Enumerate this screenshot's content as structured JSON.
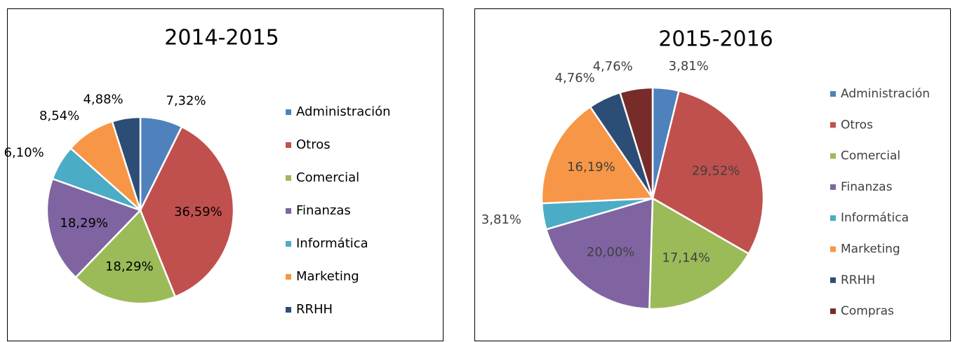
{
  "chart_data": [
    {
      "type": "pie",
      "title": "2014-2015",
      "categories": [
        "Administración",
        "Otros",
        "Comercial",
        "Finanzas",
        "Informática",
        "Marketing",
        "RRHH"
      ],
      "values": [
        7.32,
        36.59,
        18.29,
        18.29,
        6.1,
        8.54,
        4.88
      ],
      "value_labels": [
        "7,32%",
        "36,59%",
        "18,29%",
        "18,29%",
        "6,10%",
        "8,54%",
        "4,88%"
      ],
      "colors": [
        "#4f81bd",
        "#c0504d",
        "#9bbb59",
        "#8064a2",
        "#4bacc6",
        "#f79646",
        "#2c4d75"
      ],
      "legend": "right"
    },
    {
      "type": "pie",
      "title": "2015-2016",
      "categories": [
        "Administración",
        "Otros",
        "Comercial",
        "Finanzas",
        "Informática",
        "Marketing",
        "RRHH",
        "Compras"
      ],
      "values": [
        3.81,
        29.52,
        17.14,
        20.0,
        3.81,
        16.19,
        4.76,
        4.76
      ],
      "value_labels": [
        "3,81%",
        "29,52%",
        "17,14%",
        "20,00%",
        "3,81%",
        "16,19%",
        "4,76%",
        "4,76%"
      ],
      "colors": [
        "#4f81bd",
        "#c0504d",
        "#9bbb59",
        "#8064a2",
        "#4bacc6",
        "#f79646",
        "#2c4d75",
        "#772c2a"
      ],
      "legend": "right"
    }
  ]
}
